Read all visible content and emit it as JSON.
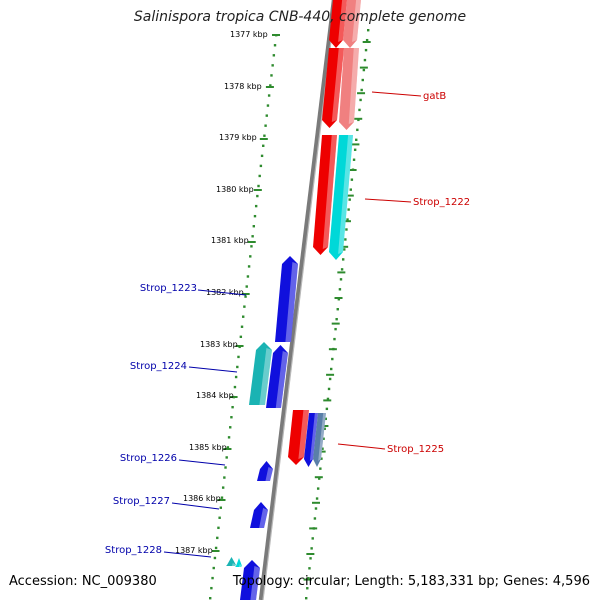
{
  "title": "Salinispora tropica CNB-440, complete genome",
  "footer": {
    "accession": "Accession: NC_009380",
    "summary": "Topology: circular; Length: 5,183,331 bp; Genes: 4,596"
  },
  "colors": {
    "background": "#ffffff",
    "backbone": "#7a7a7a",
    "tick": "#2e8b2e",
    "forward_label": "#cc0000",
    "reverse_label": "#0000aa",
    "forward_gene": "#ee0000",
    "forward_gene_light": "#f08080",
    "cyan_gene": "#00d8d8",
    "teal_gene": "#1ab3b3",
    "reverse_gene": "#1010dd",
    "blue_gray": "#5a7fa8"
  },
  "kbp_labels": [
    "1377 kbp",
    "1378 kbp",
    "1379 kbp",
    "1380 kbp",
    "1381 kbp",
    "1382 kbp",
    "1383 kbp",
    "1384 kbp",
    "1385 kbp",
    "1386 kbp",
    "1387 kbp"
  ],
  "gene_labels": [
    {
      "name": "gatB",
      "strand": "forward"
    },
    {
      "name": "Strop_1222",
      "strand": "forward"
    },
    {
      "name": "Strop_1223",
      "strand": "reverse"
    },
    {
      "name": "Strop_1224",
      "strand": "reverse"
    },
    {
      "name": "Strop_1225",
      "strand": "forward"
    },
    {
      "name": "Strop_1226",
      "strand": "reverse"
    },
    {
      "name": "Strop_1227",
      "strand": "reverse"
    },
    {
      "name": "Strop_1228",
      "strand": "reverse"
    }
  ]
}
